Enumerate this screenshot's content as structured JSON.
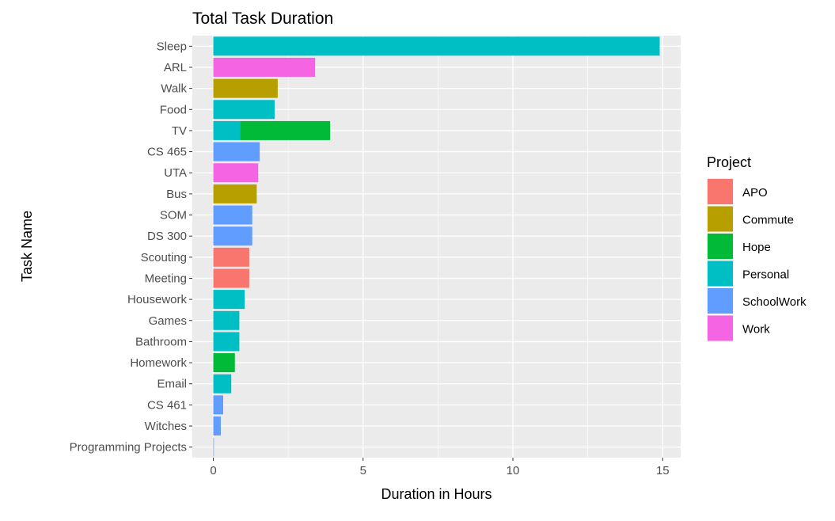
{
  "chart_data": {
    "type": "bar",
    "orientation": "horizontal",
    "stacked": true,
    "title": "Total Task Duration",
    "xlabel": "Duration in Hours",
    "ylabel": "Task Name",
    "xlim": [
      -0.7,
      15.6
    ],
    "xticks": [
      "0",
      "5",
      "10",
      "15"
    ],
    "grid": true,
    "legend_position": "right",
    "categories": [
      "Sleep",
      "ARL",
      "Walk",
      "Food",
      "TV",
      "CS 465",
      "UTA",
      "Bus",
      "SOM",
      "DS 300",
      "Scouting",
      "Meeting",
      "Housework",
      "Games",
      "Bathroom",
      "Homework",
      "Email",
      "CS 461",
      "Witches",
      "Programming Projects"
    ],
    "legend": {
      "title": "Project",
      "entries": [
        {
          "name": "APO",
          "color": "#F8766D"
        },
        {
          "name": "Commute",
          "color": "#B79F00"
        },
        {
          "name": "Hope",
          "color": "#00BA38"
        },
        {
          "name": "Personal",
          "color": "#00BFC4"
        },
        {
          "name": "SchoolWork",
          "color": "#619CFF"
        },
        {
          "name": "Work",
          "color": "#F564E3"
        }
      ]
    },
    "bars": [
      {
        "task": "Sleep",
        "segments": [
          {
            "project": "Personal",
            "value": 14.9
          }
        ]
      },
      {
        "task": "ARL",
        "segments": [
          {
            "project": "Work",
            "value": 3.4
          }
        ]
      },
      {
        "task": "Walk",
        "segments": [
          {
            "project": "Commute",
            "value": 2.15
          }
        ]
      },
      {
        "task": "Food",
        "segments": [
          {
            "project": "Personal",
            "value": 2.05
          }
        ]
      },
      {
        "task": "TV",
        "segments": [
          {
            "project": "Personal",
            "value": 0.9
          },
          {
            "project": "Hope",
            "value": 3.0
          }
        ]
      },
      {
        "task": "CS 465",
        "segments": [
          {
            "project": "SchoolWork",
            "value": 1.55
          }
        ]
      },
      {
        "task": "UTA",
        "segments": [
          {
            "project": "Work",
            "value": 1.5
          }
        ]
      },
      {
        "task": "Bus",
        "segments": [
          {
            "project": "Commute",
            "value": 1.45
          }
        ]
      },
      {
        "task": "SOM",
        "segments": [
          {
            "project": "SchoolWork",
            "value": 1.3
          }
        ]
      },
      {
        "task": "DS 300",
        "segments": [
          {
            "project": "SchoolWork",
            "value": 1.3
          }
        ]
      },
      {
        "task": "Scouting",
        "segments": [
          {
            "project": "APO",
            "value": 1.2
          }
        ]
      },
      {
        "task": "Meeting",
        "segments": [
          {
            "project": "APO",
            "value": 1.2
          }
        ]
      },
      {
        "task": "Housework",
        "segments": [
          {
            "project": "Personal",
            "value": 1.05
          }
        ]
      },
      {
        "task": "Games",
        "segments": [
          {
            "project": "Personal",
            "value": 0.87
          }
        ]
      },
      {
        "task": "Bathroom",
        "segments": [
          {
            "project": "Personal",
            "value": 0.87
          }
        ]
      },
      {
        "task": "Homework",
        "segments": [
          {
            "project": "Hope",
            "value": 0.72
          }
        ]
      },
      {
        "task": "Email",
        "segments": [
          {
            "project": "Personal",
            "value": 0.6
          }
        ]
      },
      {
        "task": "CS 461",
        "segments": [
          {
            "project": "SchoolWork",
            "value": 0.33
          }
        ]
      },
      {
        "task": "Witches",
        "segments": [
          {
            "project": "SchoolWork",
            "value": 0.25
          }
        ]
      },
      {
        "task": "Programming Projects",
        "segments": [
          {
            "project": "SchoolWork",
            "value": 0.02
          }
        ]
      }
    ]
  }
}
